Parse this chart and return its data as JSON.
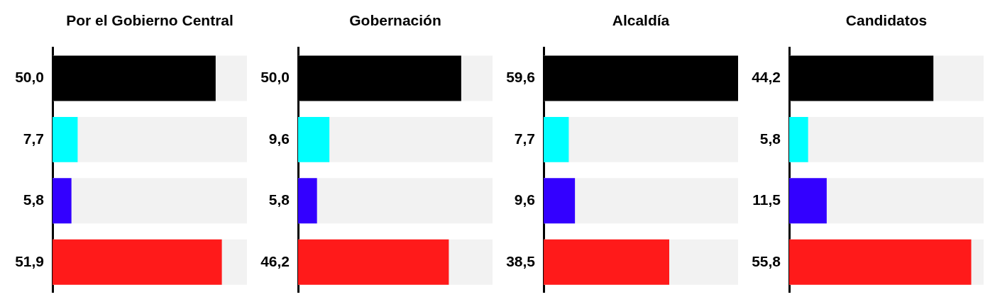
{
  "chart_data": [
    {
      "type": "bar",
      "orientation": "horizontal",
      "title": "Por el Gobierno Central",
      "categories": [
        null,
        null,
        null,
        null
      ],
      "values": [
        50.0,
        7.7,
        5.8,
        51.9
      ],
      "value_labels": [
        "50,0",
        "7,7",
        "5,8",
        "51,9"
      ],
      "colors": [
        "#000000",
        "#00ffff",
        "#3300ff",
        "#ff1a1a"
      ],
      "xlim": [
        0,
        59.6
      ],
      "tick_labels": false
    },
    {
      "type": "bar",
      "orientation": "horizontal",
      "title": "Gobernación",
      "categories": [
        null,
        null,
        null,
        null
      ],
      "values": [
        50.0,
        9.6,
        5.8,
        46.2
      ],
      "value_labels": [
        "50,0",
        "9,6",
        "5,8",
        "46,2"
      ],
      "colors": [
        "#000000",
        "#00ffff",
        "#3300ff",
        "#ff1a1a"
      ],
      "xlim": [
        0,
        59.6
      ],
      "tick_labels": false
    },
    {
      "type": "bar",
      "orientation": "horizontal",
      "title": "Alcaldía",
      "categories": [
        null,
        null,
        null,
        null
      ],
      "values": [
        59.6,
        7.7,
        9.6,
        38.5
      ],
      "value_labels": [
        "59,6",
        "7,7",
        "9,6",
        "38,5"
      ],
      "colors": [
        "#000000",
        "#00ffff",
        "#3300ff",
        "#ff1a1a"
      ],
      "xlim": [
        0,
        59.6
      ],
      "tick_labels": false
    },
    {
      "type": "bar",
      "orientation": "horizontal",
      "title": "Candidatos",
      "categories": [
        null,
        null,
        null,
        null
      ],
      "values": [
        44.2,
        5.8,
        11.5,
        55.8
      ],
      "value_labels": [
        "44,2",
        "5,8",
        "11,5",
        "55,8"
      ],
      "colors": [
        "#000000",
        "#00ffff",
        "#3300ff",
        "#ff1a1a"
      ],
      "xlim": [
        0,
        59.6
      ],
      "tick_labels": false
    }
  ]
}
